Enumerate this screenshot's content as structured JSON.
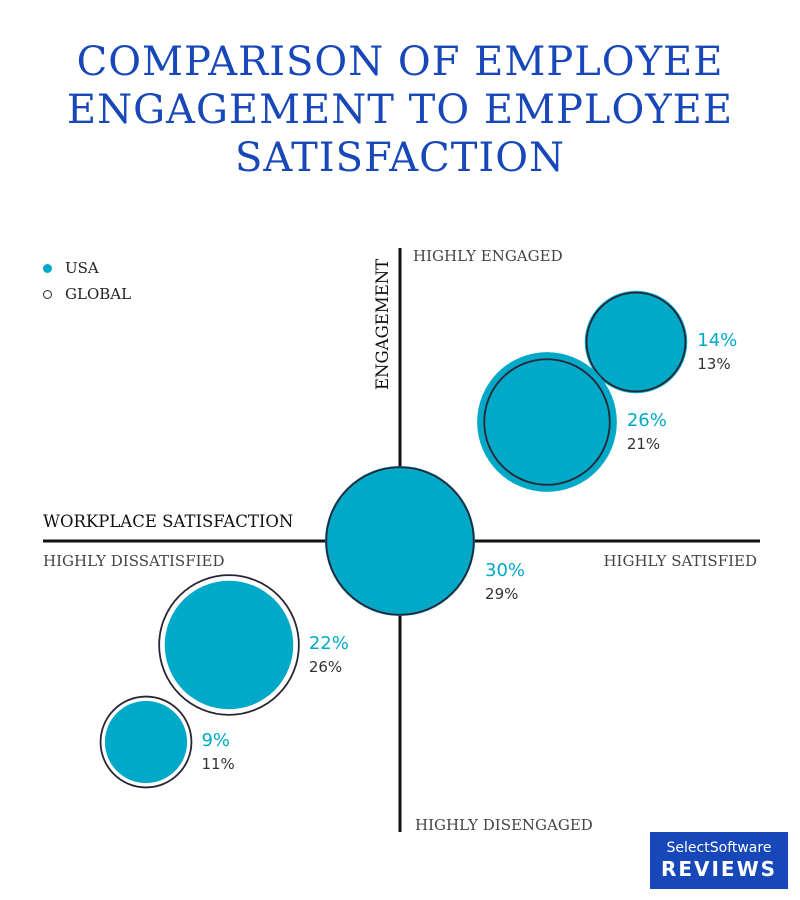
{
  "title": "COMPARISON OF EMPLOYEE ENGAGEMENT TO EMPLOYEE SATISFACTION",
  "brand": {
    "line1": "SelectSoftware",
    "line2": "REVIEWS"
  },
  "colors": {
    "title": "#1747b8",
    "usa": "#00a9c8",
    "global_outline": "#2a2535",
    "axis": "#111111",
    "global_label": "#333333",
    "brand_bg": "#1747b8"
  },
  "chart_data": {
    "type": "scatter",
    "title": "COMPARISON OF EMPLOYEE ENGAGEMENT TO EMPLOYEE SATISFACTION",
    "xlabel": "WORKPLACE SATISFACTION",
    "ylabel": "ENGAGEMENT",
    "axis_ends": {
      "x_low": "HIGHLY DISSATISFIED",
      "x_high": "HIGHLY SATISFIED",
      "y_high": "HIGHLY ENGAGED",
      "y_low": "HIGHLY DISENGAGED"
    },
    "legend": {
      "placement": "top-left",
      "entries": [
        "USA",
        "GLOBAL"
      ]
    },
    "grid": false,
    "series": [
      {
        "name": "USA"
      },
      {
        "name": "GLOBAL"
      }
    ],
    "groups": [
      {
        "quadrant": "satisfied-engaged",
        "rank": 1,
        "usa": 14,
        "global": 13,
        "usa_label": "14%",
        "global_label": "13%"
      },
      {
        "quadrant": "satisfied-engaged",
        "rank": 2,
        "usa": 26,
        "global": 21,
        "usa_label": "26%",
        "global_label": "21%"
      },
      {
        "quadrant": "center",
        "rank": 0,
        "usa": 30,
        "global": 29,
        "usa_label": "30%",
        "global_label": "29%"
      },
      {
        "quadrant": "dissatisfied-disengaged",
        "rank": 2,
        "usa": 22,
        "global": 26,
        "usa_label": "22%",
        "global_label": "26%"
      },
      {
        "quadrant": "dissatisfied-disengaged",
        "rank": 1,
        "usa": 9,
        "global": 11,
        "usa_label": "9%",
        "global_label": "11%"
      }
    ]
  }
}
